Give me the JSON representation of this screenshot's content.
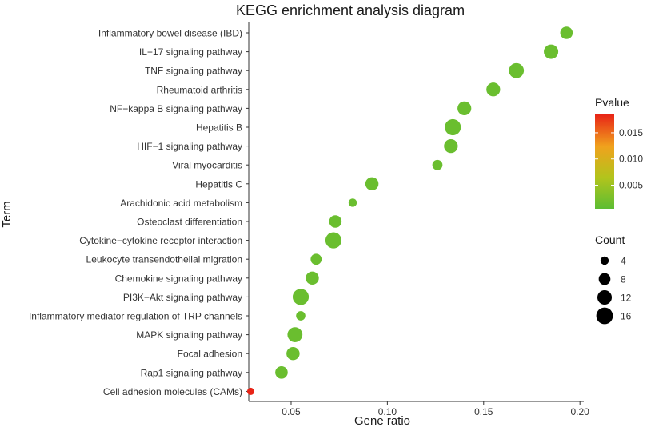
{
  "chart_data": {
    "type": "scatter",
    "title": "KEGG enrichment analysis diagram",
    "xlabel": "Gene ratio",
    "ylabel": "Term",
    "xlim": [
      0.028,
      0.202
    ],
    "xticks": [
      0.05,
      0.1,
      0.15,
      0.2
    ],
    "xtick_labels": [
      "0.05",
      "0.10",
      "0.15",
      "0.20"
    ],
    "grid": false,
    "terms": [
      {
        "term": "Inflammatory bowel disease (IBD)",
        "gene_ratio": 0.193,
        "count": 9,
        "pvalue": 0.0015
      },
      {
        "term": "IL−17 signaling pathway",
        "gene_ratio": 0.185,
        "count": 12,
        "pvalue": 0.0015
      },
      {
        "term": "TNF signaling pathway",
        "gene_ratio": 0.167,
        "count": 13,
        "pvalue": 0.0015
      },
      {
        "term": "Rheumatoid arthritis",
        "gene_ratio": 0.155,
        "count": 11,
        "pvalue": 0.0015
      },
      {
        "term": "NF−kappa B signaling pathway",
        "gene_ratio": 0.14,
        "count": 11,
        "pvalue": 0.0015
      },
      {
        "term": "Hepatitis B",
        "gene_ratio": 0.134,
        "count": 15,
        "pvalue": 0.0015
      },
      {
        "term": "HIF−1 signaling pathway",
        "gene_ratio": 0.133,
        "count": 11,
        "pvalue": 0.0015
      },
      {
        "term": "Viral myocarditis",
        "gene_ratio": 0.126,
        "count": 6,
        "pvalue": 0.0015
      },
      {
        "term": "Hepatitis C",
        "gene_ratio": 0.092,
        "count": 10,
        "pvalue": 0.0015
      },
      {
        "term": "Arachidonic acid metabolism",
        "gene_ratio": 0.082,
        "count": 4,
        "pvalue": 0.0015
      },
      {
        "term": "Osteoclast differentiation",
        "gene_ratio": 0.073,
        "count": 9,
        "pvalue": 0.0015
      },
      {
        "term": "Cytokine−cytokine receptor interaction",
        "gene_ratio": 0.072,
        "count": 15,
        "pvalue": 0.0015
      },
      {
        "term": "Leukocyte transendothelial migration",
        "gene_ratio": 0.063,
        "count": 7,
        "pvalue": 0.0015
      },
      {
        "term": "Chemokine signaling pathway",
        "gene_ratio": 0.061,
        "count": 10,
        "pvalue": 0.0015
      },
      {
        "term": "PI3K−Akt signaling pathway",
        "gene_ratio": 0.055,
        "count": 15,
        "pvalue": 0.0015
      },
      {
        "term": "Inflammatory mediator regulation of TRP channels",
        "gene_ratio": 0.055,
        "count": 5,
        "pvalue": 0.0015
      },
      {
        "term": "MAPK signaling pathway",
        "gene_ratio": 0.052,
        "count": 13,
        "pvalue": 0.0015
      },
      {
        "term": "Focal adhesion",
        "gene_ratio": 0.051,
        "count": 10,
        "pvalue": 0.0015
      },
      {
        "term": "Rap1 signaling pathway",
        "gene_ratio": 0.045,
        "count": 9,
        "pvalue": 0.0015
      },
      {
        "term": "Cell adhesion molecules (CAMs)",
        "gene_ratio": 0.029,
        "count": 3,
        "pvalue": 0.019
      }
    ],
    "legend_color": {
      "title": "Pvalue",
      "range": [
        0.0005,
        0.0185
      ],
      "ticks": [
        0.005,
        0.01,
        0.015
      ],
      "tick_labels": [
        "0.005",
        "0.010",
        "0.015"
      ],
      "colors": [
        "#5cbd33",
        "#b2c41c",
        "#f0a21d",
        "#e82417"
      ]
    },
    "legend_size": {
      "title": "Count",
      "values": [
        4,
        8,
        12,
        16
      ],
      "labels": [
        "4",
        "8",
        "12",
        "16"
      ]
    }
  }
}
